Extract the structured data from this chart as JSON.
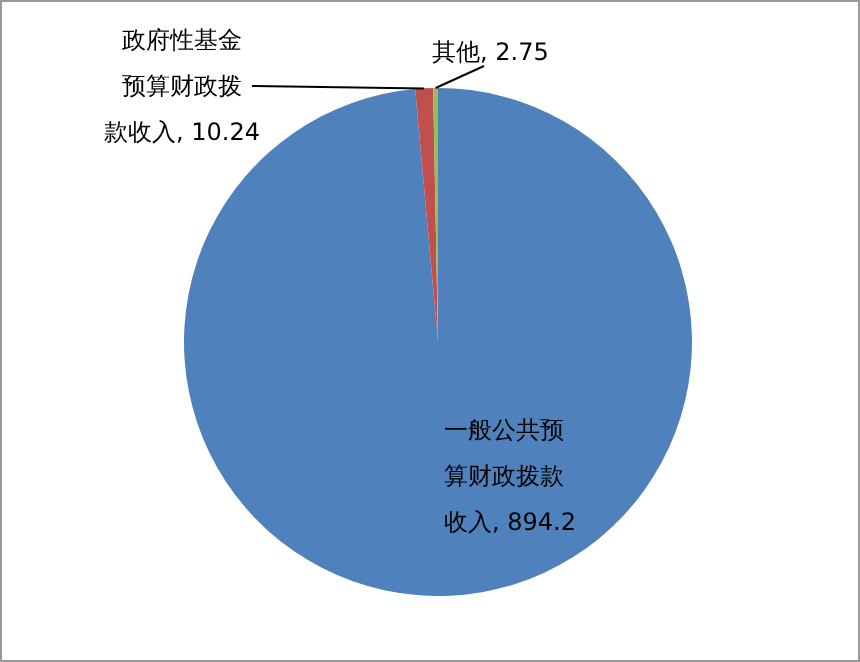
{
  "chart_data": {
    "type": "pie",
    "categories": [
      "一般公共预算财政拨款收入",
      "政府性基金预算财政拨款收入",
      "其他"
    ],
    "values": [
      894.2,
      10.24,
      2.75
    ],
    "colors": [
      "#4f81bd",
      "#c0504d",
      "#9bbb59"
    ],
    "value_labels": [
      ", 894.2",
      ", 10.24",
      ", 2.75"
    ]
  }
}
